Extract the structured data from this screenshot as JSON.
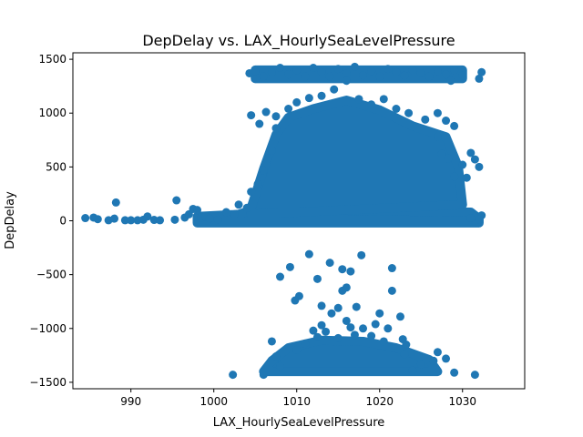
{
  "chart_data": {
    "type": "scatter",
    "title": "DepDelay vs. LAX_HourlySeaLevelPressure",
    "xlabel": "LAX_HourlySeaLevelPressure",
    "ylabel": "DepDelay",
    "xlim": [
      983.0,
      1037.5
    ],
    "ylim": [
      -1560,
      1560
    ],
    "xticks": [
      990,
      1000,
      1010,
      1020,
      1030
    ],
    "yticks": [
      -1500,
      -1000,
      -500,
      0,
      500,
      1000,
      1500
    ],
    "grid": false,
    "marker_color": "#1f77b4",
    "series": [
      {
        "points": [
          [
            984.5,
            25
          ],
          [
            985.5,
            30
          ],
          [
            986.0,
            15
          ],
          [
            987.3,
            5
          ],
          [
            988.0,
            20
          ],
          [
            988.2,
            170
          ],
          [
            989.3,
            5
          ],
          [
            990.0,
            5
          ],
          [
            990.8,
            5
          ],
          [
            991.5,
            10
          ],
          [
            992.0,
            40
          ],
          [
            992.8,
            8
          ],
          [
            993.5,
            5
          ],
          [
            995.3,
            10
          ],
          [
            995.5,
            190
          ],
          [
            996.5,
            30
          ],
          [
            997.0,
            60
          ],
          [
            997.5,
            110
          ],
          [
            998.0,
            100
          ],
          [
            998.5,
            30
          ],
          [
            999.0,
            40
          ],
          [
            999.5,
            20
          ],
          [
            1000.5,
            10
          ],
          [
            1001.5,
            80
          ],
          [
            1002.5,
            60
          ],
          [
            1003.0,
            150
          ],
          [
            1004.0,
            120
          ],
          [
            1004.5,
            270
          ],
          [
            1005.3,
            340
          ],
          [
            1006.0,
            470
          ],
          [
            1006.5,
            580
          ],
          [
            1007.0,
            650
          ],
          [
            1007.5,
            860
          ],
          [
            1005.5,
            900
          ],
          [
            1004.5,
            980
          ],
          [
            1006.3,
            1010
          ],
          [
            1007.5,
            970
          ],
          [
            1009.0,
            1040
          ],
          [
            1010.0,
            1100
          ],
          [
            1011.5,
            1140
          ],
          [
            1013.0,
            1160
          ],
          [
            1014.5,
            1220
          ],
          [
            1016.0,
            1300
          ],
          [
            1017.5,
            1130
          ],
          [
            1019.0,
            1080
          ],
          [
            1020.5,
            1130
          ],
          [
            1022.0,
            1040
          ],
          [
            1023.5,
            1000
          ],
          [
            1025.5,
            940
          ],
          [
            1027.0,
            1000
          ],
          [
            1028.0,
            930
          ],
          [
            1029.0,
            880
          ],
          [
            1027.0,
            780
          ],
          [
            1027.5,
            620
          ],
          [
            1028.3,
            580
          ],
          [
            1029.0,
            410
          ],
          [
            1030.0,
            520
          ],
          [
            1031.0,
            630
          ],
          [
            1031.5,
            570
          ],
          [
            1032.0,
            500
          ],
          [
            1030.5,
            400
          ],
          [
            1032.3,
            50
          ],
          [
            1032.0,
            10
          ],
          [
            1031.0,
            25
          ],
          [
            1004.3,
            1370
          ],
          [
            1005.0,
            1390
          ],
          [
            1006.0,
            1340
          ],
          [
            1007.0,
            1380
          ],
          [
            1008.0,
            1420
          ],
          [
            1009.0,
            1360
          ],
          [
            1010.0,
            1400
          ],
          [
            1011.0,
            1340
          ],
          [
            1012.0,
            1420
          ],
          [
            1013.0,
            1380
          ],
          [
            1014.0,
            1340
          ],
          [
            1015.0,
            1410
          ],
          [
            1016.0,
            1370
          ],
          [
            1017.0,
            1430
          ],
          [
            1018.0,
            1350
          ],
          [
            1019.0,
            1390
          ],
          [
            1020.0,
            1340
          ],
          [
            1021.0,
            1410
          ],
          [
            1022.0,
            1380
          ],
          [
            1023.0,
            1350
          ],
          [
            1024.0,
            1400
          ],
          [
            1025.0,
            1370
          ],
          [
            1026.0,
            1340
          ],
          [
            1027.0,
            1390
          ],
          [
            1028.0,
            1360
          ],
          [
            1029.0,
            1400
          ],
          [
            1030.0,
            1350
          ],
          [
            1032.3,
            1380
          ],
          [
            1032.0,
            1320
          ],
          [
            1028.6,
            1300
          ],
          [
            1017.8,
            -320
          ],
          [
            1011.5,
            -310
          ],
          [
            1014.0,
            -390
          ],
          [
            1009.2,
            -430
          ],
          [
            1021.5,
            -440
          ],
          [
            1015.5,
            -450
          ],
          [
            1016.5,
            -470
          ],
          [
            1008.0,
            -520
          ],
          [
            1012.5,
            -540
          ],
          [
            1016.0,
            -620
          ],
          [
            1015.5,
            -650
          ],
          [
            1021.5,
            -650
          ],
          [
            1010.3,
            -700
          ],
          [
            1009.8,
            -740
          ],
          [
            1013.0,
            -790
          ],
          [
            1015.0,
            -810
          ],
          [
            1017.2,
            -800
          ],
          [
            1020.0,
            -860
          ],
          [
            1022.5,
            -890
          ],
          [
            1014.2,
            -860
          ],
          [
            1012.0,
            -1020
          ],
          [
            1013.0,
            -970
          ],
          [
            1016.0,
            -930
          ],
          [
            1019.5,
            -960
          ],
          [
            1021.0,
            -1000
          ],
          [
            1022.8,
            -1100
          ],
          [
            1023.2,
            -1150
          ],
          [
            1028.0,
            -1280
          ],
          [
            1029.0,
            -1410
          ],
          [
            1031.5,
            -1430
          ],
          [
            1002.3,
            -1430
          ],
          [
            1006.0,
            -1430
          ],
          [
            1008.0,
            -1350
          ],
          [
            1007.5,
            -1260
          ],
          [
            1007.0,
            -1120
          ],
          [
            1026.5,
            -1300
          ],
          [
            1027.0,
            -1220
          ],
          [
            1025.0,
            -1330
          ],
          [
            1024.0,
            -1390
          ],
          [
            1023.0,
            -1240
          ],
          [
            1010.0,
            -1200
          ],
          [
            1011.0,
            -1140
          ],
          [
            1012.5,
            -1080
          ],
          [
            1017.0,
            -1060
          ],
          [
            1019.0,
            -1070
          ],
          [
            1020.5,
            -1120
          ],
          [
            1015.0,
            -1090
          ],
          [
            1013.5,
            -1030
          ],
          [
            1018.0,
            -1000
          ],
          [
            1016.5,
            -990
          ]
        ]
      }
    ]
  }
}
